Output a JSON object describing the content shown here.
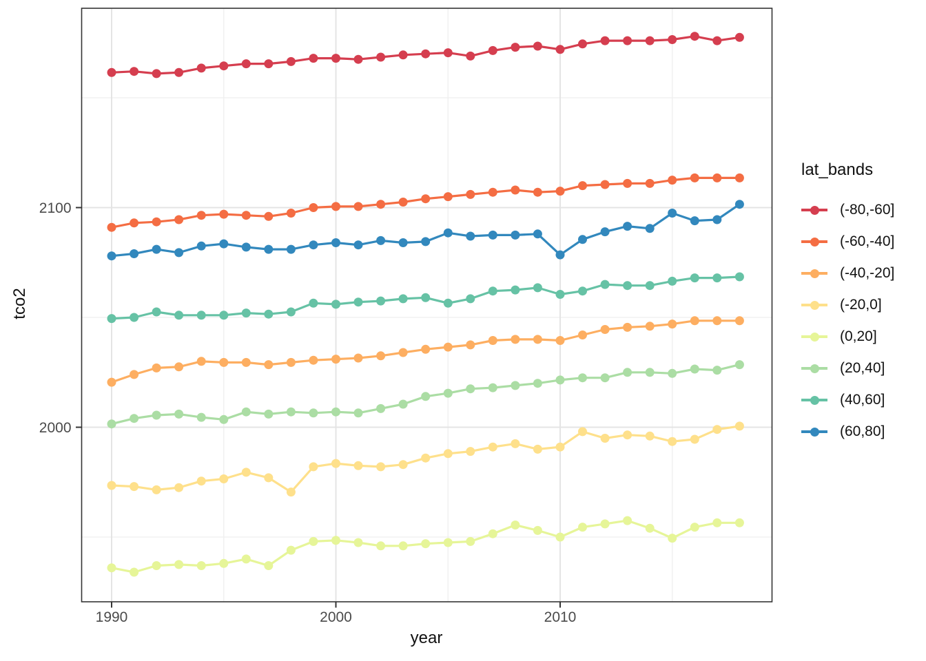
{
  "axes": {
    "x": {
      "label": "year",
      "ticks": [
        {
          "value": 1990,
          "label": "1990"
        },
        {
          "value": 2000,
          "label": "2000"
        },
        {
          "value": 2010,
          "label": "2010"
        }
      ],
      "minor_ticks": [
        1995,
        2005,
        2015
      ]
    },
    "y": {
      "label": "tco2",
      "ticks": [
        {
          "value": 2000,
          "label": "2000"
        },
        {
          "value": 2100,
          "label": "2100"
        }
      ],
      "minor_ticks": [
        1950,
        2050,
        2150
      ]
    }
  },
  "legend": {
    "title": "lat_bands",
    "position": "right",
    "entries": [
      "(-80,-60]",
      "(-60,-40]",
      "(-40,-20]",
      "(-20,0]",
      "(0,20]",
      "(20,40]",
      "(40,60]",
      "(60,80]"
    ]
  },
  "style": {
    "panel_border_color": "#333333",
    "grid_major_color": "#e4e4e4",
    "grid_minor_color": "#efefef",
    "tick_mark_color": "#343434",
    "tick_label_color": "#4a4a4a",
    "text_color": "#111111",
    "background": "#ffffff"
  },
  "chart_data": {
    "type": "line",
    "title": "",
    "xlabel": "year",
    "ylabel": "tco2",
    "xlim": [
      1988.6,
      2019.4
    ],
    "ylim": [
      1921,
      2192
    ],
    "grid": true,
    "legend_position": "right",
    "marker": "point",
    "x": [
      1990,
      1991,
      1992,
      1993,
      1994,
      1995,
      1996,
      1997,
      1998,
      1999,
      2000,
      2001,
      2002,
      2003,
      2004,
      2005,
      2006,
      2007,
      2008,
      2009,
      2010,
      2011,
      2012,
      2013,
      2014,
      2015,
      2016,
      2017,
      2018
    ],
    "series": [
      {
        "name": "(-80,-60]",
        "color": "#d53e4f",
        "values": [
          2161.5,
          2162,
          2161,
          2161.5,
          2163.5,
          2164.5,
          2165.5,
          2165.5,
          2166.5,
          2168,
          2168,
          2167.5,
          2168.5,
          2169.5,
          2170,
          2170.5,
          2169,
          2171.5,
          2173,
          2173.5,
          2172,
          2174.5,
          2176,
          2176,
          2176,
          2176.5,
          2178,
          2176,
          2177.5
        ]
      },
      {
        "name": "(-60,-40]",
        "color": "#f46d43",
        "values": [
          2091,
          2093,
          2093.5,
          2094.5,
          2096.5,
          2097,
          2096.5,
          2096,
          2097.5,
          2100,
          2100.5,
          2100.5,
          2101.5,
          2102.5,
          2104,
          2105,
          2106,
          2107,
          2108,
          2107,
          2107.5,
          2110,
          2110.5,
          2111,
          2111,
          2112.5,
          2113.5,
          2113.5,
          2113.5
        ]
      },
      {
        "name": "(-40,-20]",
        "color": "#fdae61",
        "values": [
          2020.5,
          2024,
          2027,
          2027.5,
          2030,
          2029.5,
          2029.5,
          2028.5,
          2029.5,
          2030.5,
          2031,
          2031.5,
          2032.5,
          2034,
          2035.5,
          2036.5,
          2037.5,
          2039.5,
          2040,
          2040,
          2039.5,
          2042,
          2044.5,
          2045.5,
          2046,
          2047,
          2048.5,
          2048.5,
          2048.5
        ]
      },
      {
        "name": "(-20,0]",
        "color": "#fee08b",
        "values": [
          1973.5,
          1973,
          1971.5,
          1972.5,
          1975.5,
          1976.5,
          1979.5,
          1977,
          1970.5,
          1982,
          1983.5,
          1982.5,
          1982,
          1983,
          1986,
          1988,
          1989,
          1991,
          1992.5,
          1990,
          1991,
          1998,
          1995,
          1996.5,
          1996,
          1993.5,
          1994.5,
          1999,
          2000.5
        ]
      },
      {
        "name": "(0,20]",
        "color": "#e6f598",
        "values": [
          1936,
          1934,
          1937,
          1937.5,
          1937,
          1938,
          1940,
          1937,
          1944,
          1948,
          1948.5,
          1947.5,
          1946,
          1946,
          1947,
          1947.5,
          1948,
          1951.5,
          1955.5,
          1953,
          1950,
          1954.5,
          1956,
          1957.5,
          1954,
          1949.5,
          1954.5,
          1956.5,
          1956.5
        ]
      },
      {
        "name": "(20,40]",
        "color": "#abdda4",
        "values": [
          2001.5,
          2004,
          2005.5,
          2006,
          2004.5,
          2003.5,
          2007,
          2006,
          2007,
          2006.5,
          2007,
          2006.5,
          2008.5,
          2010.5,
          2014,
          2015.5,
          2017.5,
          2018,
          2019,
          2020,
          2021.5,
          2022.5,
          2022.5,
          2025,
          2025,
          2024.5,
          2026.5,
          2026,
          2028.5
        ]
      },
      {
        "name": "(40,60]",
        "color": "#66c2a5",
        "values": [
          2049.5,
          2050,
          2052.5,
          2051,
          2051,
          2051,
          2052,
          2051.5,
          2052.5,
          2056.5,
          2056,
          2057,
          2057.5,
          2058.5,
          2059,
          2056.5,
          2058.5,
          2062,
          2062.5,
          2063.5,
          2060.5,
          2062,
          2065,
          2064.5,
          2064.5,
          2066.5,
          2068,
          2068,
          2068.5
        ]
      },
      {
        "name": "(60,80]",
        "color": "#3288bd",
        "values": [
          2078,
          2079,
          2081,
          2079.5,
          2082.5,
          2083.5,
          2082,
          2081,
          2081,
          2083,
          2084,
          2083,
          2085,
          2084,
          2084.5,
          2088.5,
          2087,
          2087.5,
          2087.5,
          2088,
          2078.5,
          2085.5,
          2089,
          2091.5,
          2090.5,
          2097.5,
          2094,
          2094.5,
          2101.5
        ]
      }
    ]
  }
}
